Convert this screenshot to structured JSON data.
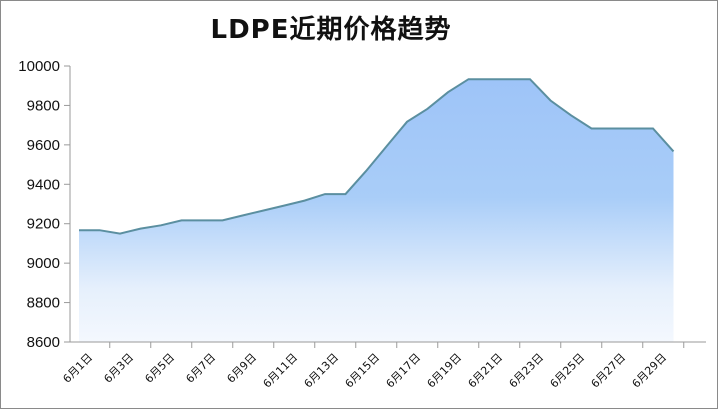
{
  "chart_data": {
    "type": "area",
    "title": "LDPE近期价格趋势",
    "xlabel": "",
    "ylabel": "",
    "ylim": [
      8600,
      10000
    ],
    "yticks": [
      8600,
      8800,
      9000,
      9200,
      9400,
      9600,
      9800,
      10000
    ],
    "grid": false,
    "legend": "none",
    "x": [
      "6月1日",
      "6月2日",
      "6月3日",
      "6月4日",
      "6月5日",
      "6月6日",
      "6月7日",
      "6月8日",
      "6月9日",
      "6月10日",
      "6月11日",
      "6月12日",
      "6月13日",
      "6月14日",
      "6月15日",
      "6月16日",
      "6月17日",
      "6月18日",
      "6月19日",
      "6月20日",
      "6月21日",
      "6月22日",
      "6月23日",
      "6月24日",
      "6月25日",
      "6月26日",
      "6月27日",
      "6月28日",
      "6月29日",
      "6月30日"
    ],
    "xtick_labels": [
      "6月1日",
      "6月3日",
      "6月5日",
      "6月7日",
      "6月9日",
      "6月11日",
      "6月13日",
      "6月15日",
      "6月17日",
      "6月19日",
      "6月21日",
      "6月23日",
      "6月25日",
      "6月27日",
      "6月29日"
    ],
    "series": [
      {
        "values": [
          9167,
          9167,
          9150,
          9175,
          9192,
          9217,
          9217,
          9217,
          9242,
          9267,
          9292,
          9317,
          9350,
          9350,
          9467,
          9592,
          9717,
          9783,
          9867,
          9933,
          9933,
          9933,
          9933,
          9825,
          9750,
          9683,
          9683,
          9683,
          9683,
          9567
        ]
      }
    ],
    "colors": {
      "line": "#5b8fa0",
      "fill_top": "#9ec4f8",
      "fill_mid": "#a9cdf8",
      "fill_bottom": "#f4f8fe",
      "axis": "#9a9a9a"
    }
  }
}
